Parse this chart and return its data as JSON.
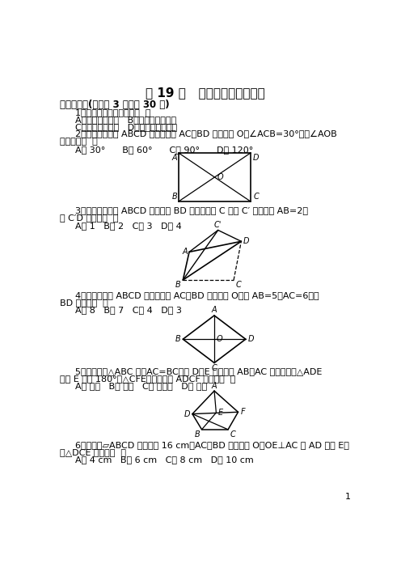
{
  "title": "第 19 章   矩形、菱形与正方形",
  "section1": "一、选择题(每小题 3 分，共 30 分)",
  "q1": "1．菱形不具备的性质是（  ）",
  "q1a": "A．四条边都相等   B．对角线一定相等",
  "q1b": "C．是轴对称图形   D．是中心对称图形",
  "q2a": "2．如图，在矩形 ABCD 中，对角线 AC、BD 相交于点 O，∠ACB=30°，则∠AOB",
  "q2b": "的度数为（  ）",
  "q2opts": "A． 30°      B． 60°      C． 90°      D． 120°",
  "q3a": "3．如图，将矩形 ABCD 沿对角线 BD 折叠，使点 C 与点 C′ 重合，若 AB=2，",
  "q3b": "则 C′D 的长为（  ）",
  "q3opts": "A． 1   B． 2   C． 3   D． 4",
  "q4a": "4．如图，菱形 ABCD 中，对角线 AC、BD 相交于点 O，若 AB=5，AC=6，则",
  "q4b": "BD 的长是（  ）",
  "q4opts": "A． 8   B． 7   C． 4   D． 3",
  "q5a": "5．如图，在△ABC 中，AC=BC，点 D、E 分别是边 AB、AC 的中点，将△ADE",
  "q5b": "绕点 E 旋转 180°得△CFE，则四边形 ADCF 一定是（  ）",
  "q5opts": "A． 矩形   B． 菱形   C． 正方形   D． 梯形",
  "q6a": "6．如图，▱ABCD 的周长为 16 cm，AC、BD 相交于点 O，OE⊥AC 交 AD 于点 E，",
  "q6b": "则△DCE 的长为（  ）",
  "q6opts": "A． 4 cm   B． 6 cm   C． 8 cm   D． 10 cm",
  "page": "1",
  "bg_color": "#ffffff"
}
